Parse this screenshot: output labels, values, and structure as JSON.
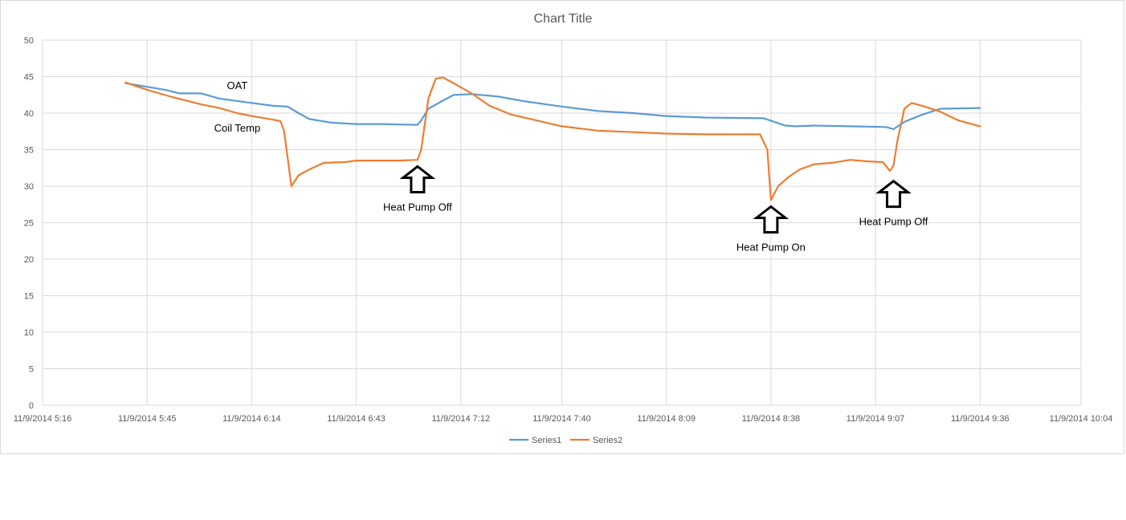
{
  "chart_data": {
    "type": "line",
    "title": "Chart Title",
    "xlabel": "",
    "ylabel": "",
    "ylim": [
      0,
      50
    ],
    "y_ticks": [
      0,
      5,
      10,
      15,
      20,
      25,
      30,
      35,
      40,
      45,
      50
    ],
    "x_ticks": [
      "11/9/2014 5:16",
      "11/9/2014 5:45",
      "11/9/2014 6:14",
      "11/9/2014 6:43",
      "11/9/2014 7:12",
      "11/9/2014 7:40",
      "11/9/2014 8:09",
      "11/9/2014 8:38",
      "11/9/2014 9:07",
      "11/9/2014 9:36",
      "11/9/2014 10:04"
    ],
    "xlim": [
      "11/9/2014 5:16",
      "11/9/2014 10:04"
    ],
    "grid": true,
    "legend": "bottom",
    "series": [
      {
        "name": "Series1",
        "color": "#5B9BD5",
        "points": [
          [
            "11/9/2014 5:39",
            44.1
          ],
          [
            "11/9/2014 5:45",
            43.6
          ],
          [
            "11/9/2014 5:50",
            43.2
          ],
          [
            "11/9/2014 5:54",
            42.7
          ],
          [
            "11/9/2014 6:00",
            42.7
          ],
          [
            "11/9/2014 6:05",
            42.0
          ],
          [
            "11/9/2014 6:14",
            41.4
          ],
          [
            "11/9/2014 6:20",
            41.0
          ],
          [
            "11/9/2014 6:24",
            40.9
          ],
          [
            "11/9/2014 6:27",
            40.0
          ],
          [
            "11/9/2014 6:30",
            39.2
          ],
          [
            "11/9/2014 6:36",
            38.7
          ],
          [
            "11/9/2014 6:43",
            38.5
          ],
          [
            "11/9/2014 6:50",
            38.5
          ],
          [
            "11/9/2014 7:00",
            38.4
          ],
          [
            "11/9/2014 7:01",
            39.0
          ],
          [
            "11/9/2014 7:03",
            40.6
          ],
          [
            "11/9/2014 7:07",
            41.7
          ],
          [
            "11/9/2014 7:10",
            42.5
          ],
          [
            "11/9/2014 7:15",
            42.6
          ],
          [
            "11/9/2014 7:22",
            42.3
          ],
          [
            "11/9/2014 7:30",
            41.6
          ],
          [
            "11/9/2014 7:40",
            40.9
          ],
          [
            "11/9/2014 7:50",
            40.3
          ],
          [
            "11/9/2014 8:00",
            40.0
          ],
          [
            "11/9/2014 8:09",
            39.6
          ],
          [
            "11/9/2014 8:20",
            39.4
          ],
          [
            "11/9/2014 8:36",
            39.3
          ],
          [
            "11/9/2014 8:42",
            38.3
          ],
          [
            "11/9/2014 8:45",
            38.2
          ],
          [
            "11/9/2014 8:50",
            38.3
          ],
          [
            "11/9/2014 9:00",
            38.2
          ],
          [
            "11/9/2014 9:10",
            38.1
          ],
          [
            "11/9/2014 9:12",
            37.8
          ],
          [
            "11/9/2014 9:15",
            38.8
          ],
          [
            "11/9/2014 9:20",
            39.8
          ],
          [
            "11/9/2014 9:25",
            40.6
          ],
          [
            "11/9/2014 9:36",
            40.7
          ]
        ]
      },
      {
        "name": "Series2",
        "color": "#ED7D31",
        "points": [
          [
            "11/9/2014 5:39",
            44.2
          ],
          [
            "11/9/2014 5:45",
            43.2
          ],
          [
            "11/9/2014 5:52",
            42.2
          ],
          [
            "11/9/2014 6:00",
            41.2
          ],
          [
            "11/9/2014 6:05",
            40.7
          ],
          [
            "11/9/2014 6:10",
            40.0
          ],
          [
            "11/9/2014 6:14",
            39.6
          ],
          [
            "11/9/2014 6:20",
            39.1
          ],
          [
            "11/9/2014 6:22",
            38.9
          ],
          [
            "11/9/2014 6:23",
            37.5
          ],
          [
            "11/9/2014 6:25",
            30.0
          ],
          [
            "11/9/2014 6:27",
            31.5
          ],
          [
            "11/9/2014 6:30",
            32.3
          ],
          [
            "11/9/2014 6:34",
            33.2
          ],
          [
            "11/9/2014 6:40",
            33.3
          ],
          [
            "11/9/2014 6:43",
            33.5
          ],
          [
            "11/9/2014 6:55",
            33.5
          ],
          [
            "11/9/2014 7:00",
            33.6
          ],
          [
            "11/9/2014 7:01",
            35.0
          ],
          [
            "11/9/2014 7:03",
            42.0
          ],
          [
            "11/9/2014 7:05",
            44.7
          ],
          [
            "11/9/2014 7:07",
            44.9
          ],
          [
            "11/9/2014 7:10",
            44.1
          ],
          [
            "11/9/2014 7:15",
            42.7
          ],
          [
            "11/9/2014 7:20",
            41.0
          ],
          [
            "11/9/2014 7:26",
            39.8
          ],
          [
            "11/9/2014 7:33",
            39.0
          ],
          [
            "11/9/2014 7:40",
            38.2
          ],
          [
            "11/9/2014 7:50",
            37.6
          ],
          [
            "11/9/2014 8:00",
            37.4
          ],
          [
            "11/9/2014 8:09",
            37.2
          ],
          [
            "11/9/2014 8:20",
            37.1
          ],
          [
            "11/9/2014 8:35",
            37.1
          ],
          [
            "11/9/2014 8:37",
            35.0
          ],
          [
            "11/9/2014 8:38",
            28.1
          ],
          [
            "11/9/2014 8:40",
            30.0
          ],
          [
            "11/9/2014 8:43",
            31.3
          ],
          [
            "11/9/2014 8:46",
            32.3
          ],
          [
            "11/9/2014 8:50",
            33.0
          ],
          [
            "11/9/2014 8:55",
            33.2
          ],
          [
            "11/9/2014 9:00",
            33.6
          ],
          [
            "11/9/2014 9:05",
            33.4
          ],
          [
            "11/9/2014 9:09",
            33.3
          ],
          [
            "11/9/2014 9:11",
            32.1
          ],
          [
            "11/9/2014 9:12",
            32.8
          ],
          [
            "11/9/2014 9:13",
            36.0
          ],
          [
            "11/9/2014 9:15",
            40.6
          ],
          [
            "11/9/2014 9:17",
            41.4
          ],
          [
            "11/9/2014 9:20",
            41.0
          ],
          [
            "11/9/2014 9:25",
            40.2
          ],
          [
            "11/9/2014 9:30",
            39.0
          ],
          [
            "11/9/2014 9:36",
            38.2
          ]
        ]
      }
    ],
    "annotations": [
      {
        "text": "OAT",
        "kind": "label",
        "anchor": [
          "11/9/2014 6:10",
          43.3
        ]
      },
      {
        "text": "Coil Temp",
        "kind": "label",
        "anchor": [
          "11/9/2014 6:10",
          37.5
        ]
      },
      {
        "text": "Heat Pump Off",
        "kind": "arrow",
        "anchor": [
          "11/9/2014 7:00",
          30.5
        ]
      },
      {
        "text": "Heat Pump On",
        "kind": "arrow",
        "anchor": [
          "11/9/2014 8:38",
          25.0
        ]
      },
      {
        "text": "Heat Pump Off",
        "kind": "arrow",
        "anchor": [
          "11/9/2014 9:12",
          28.5
        ]
      }
    ]
  }
}
